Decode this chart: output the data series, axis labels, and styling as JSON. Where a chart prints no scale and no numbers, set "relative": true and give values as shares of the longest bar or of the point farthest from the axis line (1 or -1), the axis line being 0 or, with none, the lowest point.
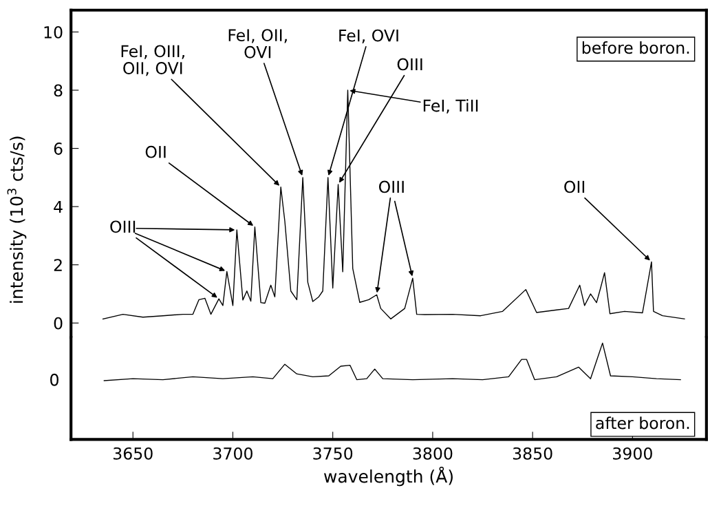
{
  "chart_data": [
    {
      "type": "line",
      "ylabel": "intensity (10$^{3}$ cts/s)",
      "xlim": [
        3619,
        3937
      ],
      "ylim": [
        -0.5,
        10.75
      ],
      "xticks": [
        3650,
        3700,
        3750,
        3800,
        3850,
        3900
      ],
      "yticks": [
        0,
        2,
        4,
        6,
        8,
        10
      ],
      "tick_labels": "y",
      "series": [
        {
          "color": "#000000",
          "x": [
            3635,
            3645,
            3655,
            3665,
            3675,
            3680,
            3683,
            3686,
            3689,
            3693,
            3695,
            3697,
            3700,
            3702,
            3705,
            3707,
            3709,
            3711,
            3714,
            3716,
            3719,
            3721,
            3724,
            3726,
            3729,
            3732,
            3735,
            3737.5,
            3740,
            3743,
            3745,
            3747.6,
            3750,
            3752.7,
            3755,
            3757.5,
            3760,
            3763.5,
            3768,
            3772,
            3774,
            3779,
            3786,
            3790,
            3792,
            3796,
            3810,
            3824,
            3835,
            3846.6,
            3852,
            3862,
            3868,
            3873.6,
            3876,
            3879,
            3882,
            3884,
            3886,
            3888.7,
            3896,
            3905,
            3909.5,
            3910.5,
            3915,
            3926
          ],
          "values": [
            0.14,
            0.3,
            0.2,
            0.25,
            0.3,
            0.3,
            0.8,
            0.85,
            0.3,
            0.83,
            0.6,
            1.77,
            0.6,
            3.2,
            0.79,
            1.1,
            0.75,
            3.3,
            0.7,
            0.68,
            1.3,
            0.9,
            4.67,
            3.5,
            1.1,
            0.8,
            5.0,
            1.4,
            0.74,
            0.9,
            1.1,
            5.0,
            1.2,
            4.76,
            1.76,
            8.0,
            1.87,
            0.71,
            0.8,
            0.97,
            0.5,
            0.14,
            0.5,
            1.54,
            0.3,
            0.29,
            0.3,
            0.25,
            0.4,
            1.15,
            0.36,
            0.45,
            0.5,
            1.3,
            0.6,
            1.0,
            0.7,
            1.2,
            1.73,
            0.32,
            0.4,
            0.35,
            2.1,
            0.4,
            0.25,
            0.14
          ]
        }
      ],
      "annotations": [
        {
          "text": "OIII",
          "x": 3693,
          "y": 0.83
        },
        {
          "text": "OII",
          "x": 3711,
          "y": 3.3
        },
        {
          "text": "FeI, OIII,\nOII, OVI",
          "x": 3724,
          "y": 4.67
        },
        {
          "text": "FeI, OII,\nOVI",
          "x": 3735,
          "y": 5.0
        },
        {
          "text": "FeI, OVI",
          "x": 3747.6,
          "y": 5.0
        },
        {
          "text": "OIII",
          "x": 3752.7,
          "y": 4.76
        },
        {
          "text": "FeI, TiII",
          "x": 3757.5,
          "y": 8.0
        },
        {
          "text": "OIII",
          "x": 3772,
          "y": 0.97
        },
        {
          "text": "OII",
          "x": 3909.5,
          "y": 2.1
        },
        "before boron."
      ]
    },
    {
      "type": "line",
      "xlabel": "wavelength (Å)",
      "xlim": [
        3619,
        3937
      ],
      "xticks": [
        3650,
        3700,
        3750,
        3800,
        3850,
        3900
      ],
      "relative": true,
      "tick_labels": "x",
      "series": [
        {
          "color": "#000000",
          "x": [
            3635.6,
            3650,
            3665,
            3680,
            3695,
            3710,
            3720,
            3726,
            3732,
            3740,
            3748,
            3754,
            3758.6,
            3762,
            3767,
            3771,
            3775,
            3790,
            3810,
            3825,
            3838,
            3844.5,
            3847,
            3851,
            3862,
            3873,
            3879,
            3885,
            3889,
            3900,
            3912,
            3924
          ],
          "values": [
            0.61,
            0.63,
            0.62,
            0.65,
            0.63,
            0.65,
            0.63,
            0.78,
            0.68,
            0.65,
            0.66,
            0.76,
            0.77,
            0.62,
            0.63,
            0.73,
            0.63,
            0.62,
            0.63,
            0.62,
            0.65,
            0.83,
            0.83,
            0.62,
            0.65,
            0.75,
            0.63,
            1.0,
            0.66,
            0.65,
            0.63,
            0.62
          ]
        }
      ],
      "annotations": [
        "0",
        "after boron."
      ]
    }
  ]
}
